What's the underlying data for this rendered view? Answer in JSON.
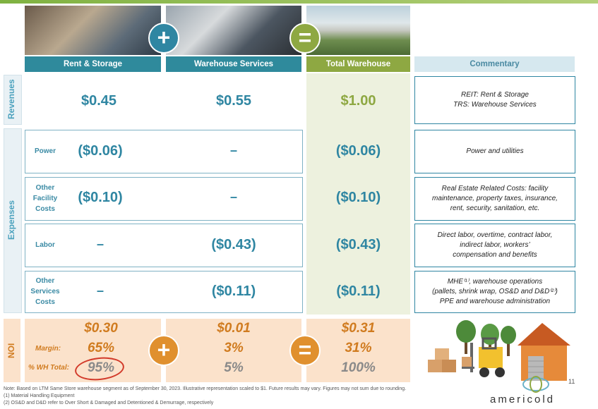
{
  "headers": {
    "rent": "Rent & Storage",
    "warehouse": "Warehouse Services",
    "total": "Total Warehouse",
    "commentary": "Commentary"
  },
  "operators": {
    "plus": "+",
    "equals": "="
  },
  "sections": {
    "revenues": "Revenues",
    "expenses": "Expenses",
    "noi": "NOI"
  },
  "revenues": {
    "rent": "$0.45",
    "warehouse": "$0.55",
    "total": "$1.00",
    "commentary_line1": "REIT: Rent & Storage",
    "commentary_line2": "TRS: Warehouse Services"
  },
  "expenses": [
    {
      "label_l1": "Power",
      "label_l2": "",
      "label_l3": "",
      "rent": "($0.06)",
      "warehouse": "–",
      "total": "($0.06)",
      "comm_l1": "Power and utilities",
      "comm_l2": "",
      "comm_l3": ""
    },
    {
      "label_l1": "Other",
      "label_l2": "Facility",
      "label_l3": "Costs",
      "rent": "($0.10)",
      "warehouse": "–",
      "total": "($0.10)",
      "comm_l1": "Real Estate Related Costs: facility",
      "comm_l2": "maintenance, property taxes, insurance,",
      "comm_l3": "rent, security, sanitation, etc."
    },
    {
      "label_l1": "Labor",
      "label_l2": "",
      "label_l3": "",
      "rent": "–",
      "warehouse": "($0.43)",
      "total": "($0.43)",
      "comm_l1": "Direct labor, overtime, contract labor,",
      "comm_l2": "indirect labor, workers’",
      "comm_l3": "compensation and benefits"
    },
    {
      "label_l1": "Other",
      "label_l2": "Services",
      "label_l3": "Costs",
      "rent": "–",
      "warehouse": "($0.11)",
      "total": "($0.11)",
      "comm_l1": "MHE⁽¹⁾, warehouse operations",
      "comm_l2": "(pallets, shrink wrap, OS&D and D&D⁽²⁾)",
      "comm_l3": "PPE and warehouse administration"
    }
  ],
  "noi": {
    "margin_label": "Margin:",
    "wh_total_label": "% WH Total:",
    "rent": {
      "value": "$0.30",
      "margin": "65%",
      "wh_total": "95%"
    },
    "warehouse": {
      "value": "$0.01",
      "margin": "3%",
      "wh_total": "5%"
    },
    "total": {
      "value": "$0.31",
      "margin": "31%",
      "wh_total": "100%"
    }
  },
  "footnotes": {
    "note": "Note: Based on LTM Same Store warehouse segment as of September 30, 2023. Illustrative representation scaled to $1. Future results may vary. Figures may not sum due to rounding.",
    "fn1": "(1)    Material Handling Equipment",
    "fn2": "(2)    OS&D and D&D refer to Over Short & Damaged and Detentioned & Demurrage, respectively"
  },
  "page_number": "11",
  "brand": "americold",
  "colors": {
    "teal": "#2f86a2",
    "green": "#8ea842",
    "orange": "#d07b1f",
    "noi_bg": "#fbe2cb"
  }
}
